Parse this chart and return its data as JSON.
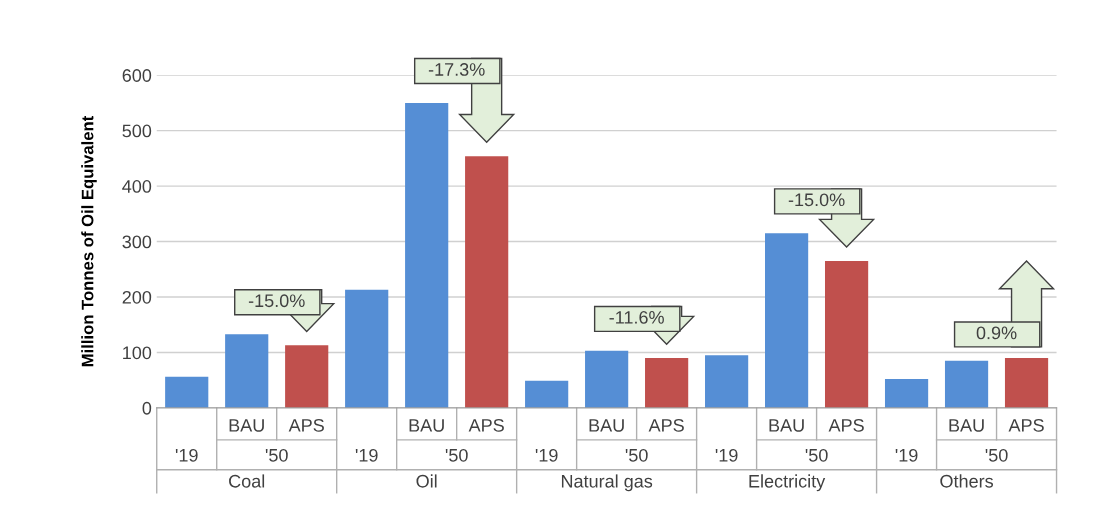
{
  "chart_data": {
    "type": "bar",
    "ylabel": "Million Tonnes of Oil Equivalent",
    "categories": [
      "'19",
      "BAU",
      "APS",
      "'19",
      "BAU",
      "APS",
      "'19",
      "BAU",
      "APS",
      "'19",
      "BAU",
      "APS",
      "'19",
      "BAU",
      "APS"
    ],
    "values": [
      56,
      133,
      113,
      213,
      550,
      454,
      49,
      103,
      90,
      95,
      315,
      265,
      52,
      85,
      90
    ],
    "colors": [
      "#558ed5",
      "#558ed5",
      "#c0504d",
      "#558ed5",
      "#558ed5",
      "#c0504d",
      "#558ed5",
      "#558ed5",
      "#c0504d",
      "#558ed5",
      "#558ed5",
      "#c0504d",
      "#558ed5",
      "#558ed5",
      "#c0504d"
    ],
    "ylim": [
      0,
      600
    ],
    "yticks": [
      0,
      100,
      200,
      300,
      400,
      500,
      600
    ],
    "grid": "y",
    "annotations": [
      "'50",
      "'50",
      "'50",
      "'50",
      "'50",
      "Coal",
      "Oil",
      "Natural gas",
      "Electricity",
      "Others",
      "-15.0%",
      "-17.3%",
      "-11.6%",
      "-15.0%",
      "0.9%"
    ]
  }
}
